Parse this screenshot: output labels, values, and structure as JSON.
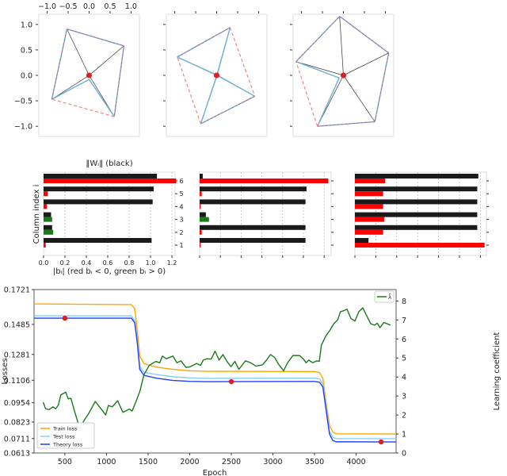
{
  "chart_data": [
    {
      "type": "scatter",
      "name": "weight-geometry",
      "xticks": [
        "−1.0",
        "−0.5",
        "0.0",
        "0.5",
        "1.0"
      ],
      "xtick_values": [
        -1.0,
        -0.5,
        0.0,
        0.5,
        1.0
      ],
      "yticks": [
        "1.0",
        "0.5",
        "0.0",
        "−0.5",
        "−1.0"
      ],
      "ytick_values": [
        1.0,
        0.5,
        0.0,
        -0.5,
        -1.0
      ],
      "xlim": [
        -1.2,
        1.2
      ],
      "ylim": [
        -1.2,
        1.2
      ],
      "colors": {
        "edge_blue": "#6baed6",
        "edge_red_dashed": "#ff8080",
        "spoke": "#333333",
        "origin": "#e41a1c"
      },
      "panels": [
        {
          "vertices": [
            [
              -0.53,
              0.91
            ],
            [
              0.83,
              0.58
            ],
            [
              0.6,
              -0.81
            ],
            [
              -0.89,
              -0.47
            ]
          ],
          "dashed_edges": [
            [
              2,
              3
            ]
          ],
          "blue_paths": [
            [
              [
                -0.89,
                -0.47
              ],
              [
                0.0,
                -0.08
              ],
              [
                0.6,
                -0.81
              ]
            ]
          ]
        },
        {
          "vertices": [
            [
              0.32,
              0.94
            ],
            [
              0.91,
              -0.41
            ],
            [
              -0.38,
              -0.95
            ],
            [
              -0.94,
              0.36
            ]
          ],
          "dashed_edges": [
            [
              0,
              1
            ],
            [
              2,
              3
            ]
          ],
          "blue_paths": [
            [
              [
                -0.94,
                0.36
              ],
              [
                0.02,
                0.0
              ],
              [
                0.91,
                -0.41
              ]
            ],
            [
              [
                0.32,
                0.94
              ],
              [
                0.0,
                -0.02
              ],
              [
                -0.38,
                -0.95
              ]
            ]
          ]
        },
        {
          "vertices": [
            [
              -0.09,
              1.16
            ],
            [
              1.08,
              0.44
            ],
            [
              0.75,
              -0.91
            ],
            [
              -0.62,
              -1.0
            ],
            [
              -1.13,
              0.27
            ]
          ],
          "dashed_edges": [
            [
              3,
              4
            ]
          ],
          "blue_paths": [
            [
              [
                -1.13,
                0.27
              ],
              [
                -0.1,
                -0.05
              ],
              [
                -0.62,
                -1.0
              ]
            ]
          ]
        }
      ]
    },
    {
      "type": "bar",
      "name": "column-norms-and-biases",
      "title": "‖Wᵢ‖ (black)",
      "ylabel": "Column index i",
      "xlabel": "|bᵢ| (red bᵢ < 0, green bᵢ > 0)",
      "categories": [
        "1",
        "2",
        "3",
        "4",
        "5",
        "6"
      ],
      "xticks": [
        "0.0",
        "0.2",
        "0.4",
        "0.6",
        "0.8",
        "1.0",
        "1.2"
      ],
      "xtick_values": [
        0,
        0.2,
        0.4,
        0.6,
        0.8,
        1.0,
        1.2
      ],
      "xlim": [
        0,
        1.25
      ],
      "colors": {
        "norm": "#1a1a1a",
        "neg": "#ff0000",
        "pos": "#1a7a1a"
      },
      "panels": [
        {
          "norm": [
            1.01,
            0.08,
            0.07,
            1.02,
            1.03,
            1.06
          ],
          "bias_abs": [
            0.02,
            0.09,
            0.08,
            0.03,
            0.04,
            1.24
          ],
          "bias_sign": [
            "-",
            "+",
            "+",
            "-",
            "-",
            "-"
          ]
        },
        {
          "norm": [
            1.02,
            1.02,
            0.06,
            1.02,
            1.03,
            0.03
          ],
          "bias_abs": [
            0.01,
            0.02,
            0.09,
            0.01,
            0.02,
            1.24
          ],
          "bias_sign": [
            "-",
            "-",
            "+",
            "-",
            "-",
            "-"
          ]
        },
        {
          "norm": [
            0.13,
            1.17,
            1.17,
            1.17,
            1.17,
            1.18
          ],
          "bias_abs": [
            1.24,
            0.27,
            0.28,
            0.27,
            0.27,
            0.29
          ],
          "bias_sign": [
            "-",
            "-",
            "-",
            "-",
            "-",
            "-"
          ]
        }
      ]
    },
    {
      "type": "line",
      "name": "training-curves",
      "xlabel": "Epoch",
      "ylabel": "Losses",
      "y2label": "Learning coefficient",
      "xlim": [
        130,
        4480
      ],
      "ylim": [
        0.0613,
        0.1721
      ],
      "y2lim": [
        0,
        8.6
      ],
      "xticks": [
        500,
        1000,
        1500,
        2000,
        2500,
        3000,
        3500,
        4000
      ],
      "yticks": [
        "0.1721",
        "0.1485",
        "0.1281",
        "0.1106",
        "0.0954",
        "0.0823",
        "0.0711",
        "0.0613"
      ],
      "ytick_values": [
        0.1721,
        0.1485,
        0.1281,
        0.1106,
        0.0954,
        0.0823,
        0.0711,
        0.0613
      ],
      "y2ticks": [
        0,
        1,
        2,
        3,
        4,
        5,
        6,
        7,
        8
      ],
      "series": [
        {
          "name": "Train loss",
          "color": "#ffa500",
          "axis": "left",
          "x": [
            130,
            1300,
            1340,
            1370,
            1400,
            1450,
            1600,
            1800,
            2000,
            2200,
            3500,
            3560,
            3600,
            3640,
            3680,
            3720,
            3760,
            4480
          ],
          "y": [
            0.1624,
            0.1619,
            0.159,
            0.145,
            0.127,
            0.122,
            0.1195,
            0.118,
            0.117,
            0.1167,
            0.1165,
            0.1158,
            0.112,
            0.095,
            0.08,
            0.0755,
            0.0743,
            0.0742
          ]
        },
        {
          "name": "Test loss",
          "color": "#87cefa",
          "axis": "left",
          "x": [
            130,
            1300,
            1340,
            1370,
            1400,
            1450,
            1600,
            1800,
            2000,
            2200,
            3500,
            3560,
            3600,
            3640,
            3680,
            3720,
            3760,
            4480
          ],
          "y": [
            0.1543,
            0.1543,
            0.151,
            0.138,
            0.12,
            0.116,
            0.1145,
            0.113,
            0.1122,
            0.1119,
            0.112,
            0.1115,
            0.108,
            0.092,
            0.076,
            0.072,
            0.0711,
            0.071
          ]
        },
        {
          "name": "Theory loss",
          "color": "#1f3fff",
          "axis": "left",
          "x": [
            130,
            1300,
            1340,
            1370,
            1400,
            1450,
            1600,
            1800,
            2000,
            2200,
            3500,
            3560,
            3600,
            3640,
            3680,
            3720,
            3760,
            4480
          ],
          "y": [
            0.1527,
            0.1527,
            0.1495,
            0.136,
            0.118,
            0.114,
            0.112,
            0.1105,
            0.1099,
            0.1097,
            0.1098,
            0.1093,
            0.106,
            0.09,
            0.074,
            0.0698,
            0.0689,
            0.0688
          ]
        },
        {
          "name": "λ̂",
          "color": "#1a7a1a",
          "axis": "right",
          "x": [
            240,
            268,
            310,
            357,
            389,
            421,
            452,
            510,
            541,
            573,
            611,
            659,
            690,
            722,
            785,
            865,
            928,
            991,
            1023,
            1070,
            1134,
            1197,
            1276,
            1308,
            1355,
            1403,
            1450,
            1514,
            1593,
            1640,
            1672,
            1719,
            1799,
            1846,
            1894,
            1957,
            2004,
            2083,
            2131,
            2163,
            2210,
            2258,
            2305,
            2353,
            2400,
            2448,
            2496,
            2543,
            2591,
            2670,
            2733,
            2797,
            2876,
            2923,
            2971,
            3018,
            3066,
            3129,
            3177,
            3240,
            3319,
            3367,
            3399,
            3430,
            3478,
            3525,
            3557,
            3582,
            3636,
            3684,
            3731,
            3779,
            3811,
            3858,
            3890,
            3937,
            3985,
            4032,
            4080,
            4127,
            4175,
            4222,
            4254,
            4286,
            4333,
            4412
          ],
          "y": [
            2.67,
            2.33,
            2.28,
            2.43,
            2.33,
            2.51,
            3.06,
            3.2,
            2.85,
            2.88,
            2.28,
            1.58,
            1.02,
            1.65,
            2.07,
            2.71,
            2.36,
            2.0,
            2.5,
            2.43,
            2.75,
            2.14,
            2.31,
            2.21,
            2.71,
            3.27,
            4.12,
            4.61,
            4.82,
            4.75,
            5.1,
            4.96,
            5.1,
            4.75,
            4.85,
            4.5,
            4.54,
            4.71,
            4.61,
            4.89,
            4.96,
            4.94,
            5.36,
            4.89,
            5.18,
            4.82,
            4.54,
            4.82,
            4.4,
            4.85,
            4.75,
            4.57,
            4.64,
            4.89,
            5.18,
            5.04,
            4.68,
            4.33,
            4.75,
            5.13,
            5.13,
            4.94,
            4.75,
            4.89,
            4.75,
            4.85,
            4.82,
            5.67,
            6.16,
            6.45,
            6.8,
            7.01,
            7.43,
            7.5,
            7.57,
            7.08,
            6.94,
            7.43,
            7.64,
            7.22,
            6.8,
            6.73,
            6.83,
            6.59,
            6.87,
            6.73
          ]
        }
      ],
      "markers": {
        "color": "#e41a1c",
        "x": [
          500,
          2500,
          4300
        ],
        "y": [
          0.1527,
          0.1097,
          0.0688
        ]
      },
      "legend_left": {
        "placement": "lower-left",
        "entries": [
          "Train loss",
          "Test loss",
          "Theory loss"
        ]
      },
      "legend_right": {
        "placement": "top-right",
        "entries": [
          "λ̂"
        ]
      }
    }
  ]
}
